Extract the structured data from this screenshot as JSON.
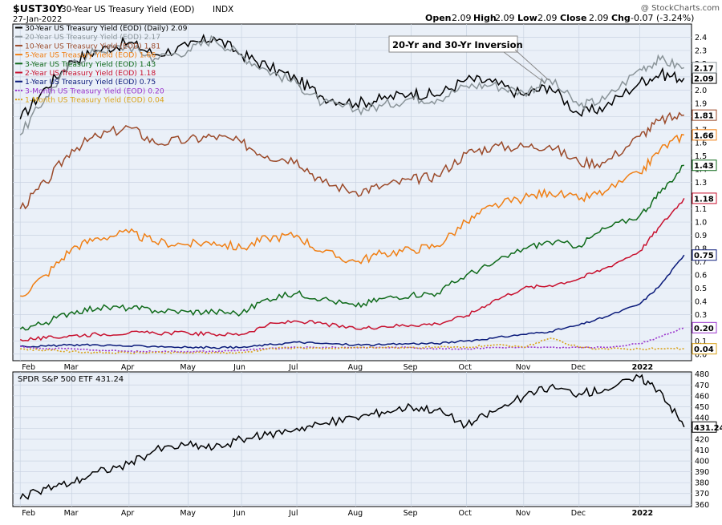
{
  "header": {
    "symbol": "$UST30Y",
    "description": "30-Year US Treasury Yield (EOD)",
    "exchange": "INDX",
    "date": "27-Jan-2022",
    "open_label": "Open",
    "open": "2.09",
    "high_label": "High",
    "high": "2.09",
    "low_label": "Low",
    "low": "2.09",
    "close_label": "Close",
    "close": "2.09",
    "chg_label": "Chg",
    "chg": "-0.07 (-3.24%)",
    "watermark": "@ StockCharts.com"
  },
  "annotation": "20-Yr and 30-Yr Inversion",
  "colors": {
    "plot_bg": "#eaf0f8",
    "grid": "#c9d3e2",
    "y30": "#000000",
    "y20": "#8a9499",
    "y10": "#9b4a2a",
    "y5": "#f07f14",
    "y3": "#0f6a1a",
    "y2": "#c8102e",
    "y1": "#0a1a7a",
    "m3": "#9933cc",
    "m1": "#d9a21a",
    "spy": "#000000"
  },
  "chart_data": [
    {
      "type": "line",
      "title": "$UST30Y 30-Year US Treasury Yield (EOD) INDX",
      "x": [
        "2021-02-01",
        "2021-02-15",
        "2021-03-01",
        "2021-03-15",
        "2021-04-01",
        "2021-04-15",
        "2021-05-03",
        "2021-05-17",
        "2021-06-01",
        "2021-06-15",
        "2021-07-01",
        "2021-07-15",
        "2021-08-02",
        "2021-08-16",
        "2021-09-01",
        "2021-09-15",
        "2021-10-01",
        "2021-10-15",
        "2021-11-01",
        "2021-11-15",
        "2021-12-01",
        "2021-12-15",
        "2022-01-03",
        "2022-01-14",
        "2022-01-27"
      ],
      "x_tick_labels": [
        "Feb",
        "Mar",
        "Apr",
        "May",
        "Jun",
        "Jul",
        "Aug",
        "Sep",
        "Oct",
        "Nov",
        "Dec",
        "2022"
      ],
      "ylim": [
        -0.05,
        2.5
      ],
      "y_ticks": [
        "0.0",
        "0.1",
        "0.2",
        "0.3",
        "0.4",
        "0.5",
        "0.6",
        "0.7",
        "0.8",
        "0.9",
        "1.0",
        "1.1",
        "1.2",
        "1.3",
        "1.4",
        "1.5",
        "1.6",
        "1.7",
        "1.8",
        "1.9",
        "2.0",
        "2.1",
        "2.2",
        "2.3",
        "2.4"
      ],
      "grid": true,
      "legend_position": "top-left",
      "series": [
        {
          "key": "y30",
          "legend": "30-Year US Treasury Yield (EOD) (Daily) 2.09",
          "last_label": "2.09",
          "values": [
            1.78,
            2.02,
            2.22,
            2.3,
            2.36,
            2.27,
            2.33,
            2.4,
            2.27,
            2.18,
            2.08,
            1.95,
            1.9,
            1.93,
            1.98,
            1.96,
            2.08,
            2.06,
            1.96,
            2.03,
            1.82,
            1.87,
            2.06,
            2.12,
            2.09
          ]
        },
        {
          "key": "y20",
          "legend": "20-Year US Treasury Yield (EOD) 2.17",
          "last_label": "2.17",
          "values": [
            1.66,
            1.95,
            2.2,
            2.3,
            2.33,
            2.24,
            2.3,
            2.39,
            2.26,
            2.15,
            2.05,
            1.9,
            1.85,
            1.88,
            1.94,
            1.93,
            2.03,
            2.04,
            1.98,
            2.08,
            1.88,
            1.93,
            2.16,
            2.23,
            2.17
          ]
        },
        {
          "key": "y10",
          "legend": "10-Year US Treasury Yield (EOD) 1.81",
          "last_label": "1.81",
          "values": [
            1.1,
            1.3,
            1.55,
            1.65,
            1.72,
            1.6,
            1.62,
            1.65,
            1.6,
            1.5,
            1.47,
            1.3,
            1.23,
            1.27,
            1.32,
            1.35,
            1.52,
            1.57,
            1.57,
            1.58,
            1.45,
            1.45,
            1.65,
            1.77,
            1.81
          ]
        },
        {
          "key": "y5",
          "legend": "5-Year US Treasury Yield (EOD) 1.66",
          "last_label": "1.66",
          "values": [
            0.44,
            0.6,
            0.8,
            0.88,
            0.92,
            0.85,
            0.83,
            0.85,
            0.8,
            0.88,
            0.9,
            0.77,
            0.7,
            0.76,
            0.79,
            0.82,
            1.0,
            1.12,
            1.18,
            1.23,
            1.17,
            1.23,
            1.37,
            1.55,
            1.66
          ]
        },
        {
          "key": "y3",
          "legend": "3-Year US Treasury Yield (EOD) 1.43",
          "last_label": "1.43",
          "values": [
            0.19,
            0.24,
            0.32,
            0.35,
            0.35,
            0.33,
            0.32,
            0.32,
            0.31,
            0.42,
            0.46,
            0.42,
            0.36,
            0.42,
            0.45,
            0.46,
            0.6,
            0.68,
            0.8,
            0.85,
            0.82,
            0.95,
            1.05,
            1.22,
            1.43
          ]
        },
        {
          "key": "y2",
          "legend": "2-Year US Treasury Yield (EOD) 1.18",
          "last_label": "1.18",
          "values": [
            0.11,
            0.12,
            0.14,
            0.15,
            0.16,
            0.16,
            0.16,
            0.15,
            0.15,
            0.22,
            0.25,
            0.23,
            0.19,
            0.21,
            0.22,
            0.23,
            0.29,
            0.4,
            0.5,
            0.52,
            0.57,
            0.65,
            0.78,
            0.97,
            1.18
          ]
        },
        {
          "key": "y1",
          "legend": "1-Year US Treasury Yield (EOD) 0.75",
          "last_label": "0.75",
          "values": [
            0.06,
            0.06,
            0.07,
            0.07,
            0.06,
            0.06,
            0.05,
            0.05,
            0.05,
            0.07,
            0.09,
            0.08,
            0.07,
            0.07,
            0.08,
            0.08,
            0.1,
            0.12,
            0.15,
            0.17,
            0.22,
            0.28,
            0.38,
            0.52,
            0.75
          ]
        },
        {
          "key": "m3",
          "legend": "3-Month US Treasury Yield (EOD) 0.20",
          "last_label": "0.20",
          "dashed": true,
          "values": [
            0.06,
            0.04,
            0.04,
            0.03,
            0.02,
            0.02,
            0.02,
            0.02,
            0.03,
            0.04,
            0.05,
            0.05,
            0.05,
            0.05,
            0.05,
            0.04,
            0.04,
            0.05,
            0.05,
            0.05,
            0.05,
            0.05,
            0.08,
            0.13,
            0.2
          ]
        },
        {
          "key": "m1",
          "legend": "1-Month US Treasury Yield (EOD) 0.04",
          "last_label": "0.04",
          "dashed": true,
          "values": [
            0.04,
            0.03,
            0.02,
            0.01,
            0.01,
            0.01,
            0.01,
            0.01,
            0.01,
            0.04,
            0.05,
            0.04,
            0.05,
            0.05,
            0.05,
            0.05,
            0.05,
            0.07,
            0.05,
            0.12,
            0.05,
            0.04,
            0.04,
            0.04,
            0.04
          ]
        }
      ]
    },
    {
      "type": "line",
      "title": "SPDR S&P 500 ETF 431.24",
      "x": [
        "2021-02-01",
        "2021-02-15",
        "2021-03-01",
        "2021-03-15",
        "2021-04-01",
        "2021-04-15",
        "2021-05-03",
        "2021-05-17",
        "2021-06-01",
        "2021-06-15",
        "2021-07-01",
        "2021-07-15",
        "2021-08-02",
        "2021-08-16",
        "2021-09-01",
        "2021-09-15",
        "2021-10-01",
        "2021-10-15",
        "2021-11-01",
        "2021-11-15",
        "2021-12-01",
        "2021-12-15",
        "2022-01-03",
        "2022-01-14",
        "2022-01-27"
      ],
      "x_tick_labels": [
        "Feb",
        "Mar",
        "Apr",
        "May",
        "Jun",
        "Jul",
        "Aug",
        "Sep",
        "Oct",
        "Nov",
        "Dec",
        "2022"
      ],
      "ylim": [
        358,
        482
      ],
      "y_ticks": [
        "360",
        "370",
        "380",
        "390",
        "400",
        "410",
        "420",
        "430",
        "440",
        "450",
        "460",
        "470",
        "480"
      ],
      "grid": true,
      "series": [
        {
          "key": "spy",
          "name": "SPDR S&P 500 ETF",
          "last_label": "431.24",
          "values": [
            365,
            375,
            380,
            390,
            397,
            410,
            415,
            412,
            420,
            424,
            430,
            434,
            440,
            445,
            450,
            447,
            433,
            445,
            459,
            468,
            462,
            466,
            477,
            465,
            431.24
          ]
        }
      ]
    }
  ]
}
